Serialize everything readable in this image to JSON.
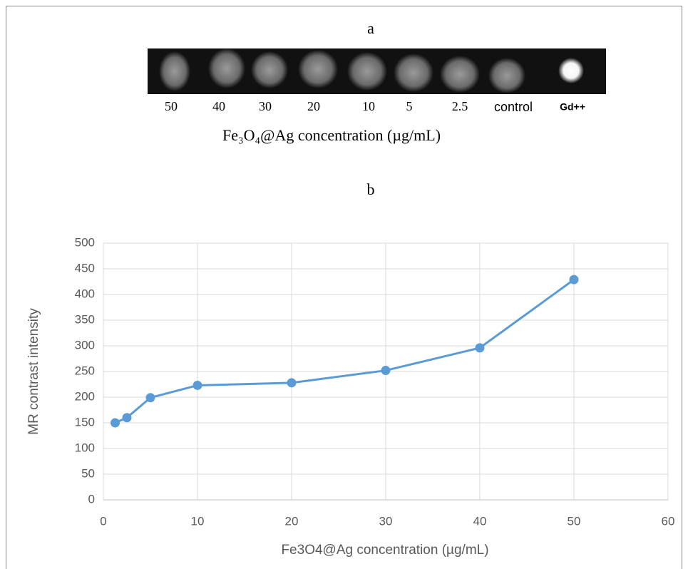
{
  "panel_a": {
    "label": "a",
    "lanes": [
      "50",
      "40",
      "30",
      "20",
      "10",
      "5",
      "2.5",
      "control",
      "Gd++"
    ],
    "caption": "Fe₃O₄@Ag concentration (µg/mL)"
  },
  "chart_data": {
    "type": "line",
    "panel_label": "b",
    "x_label": "Fe3O4@Ag concentration (µg/mL)",
    "y_label": "MR contrast intensity",
    "x": [
      1.25,
      2.5,
      5,
      10,
      20,
      30,
      40,
      50
    ],
    "series": [
      {
        "name": "MR contrast intensity",
        "color": "#5b9bd5",
        "values": [
          150,
          160,
          199,
          223,
          228,
          252,
          296,
          429
        ]
      }
    ],
    "xlim": [
      0,
      60
    ],
    "xticks": [
      0,
      10,
      20,
      30,
      40,
      50,
      60
    ],
    "ylim": [
      0,
      500
    ],
    "yticks": [
      0,
      50,
      100,
      150,
      200,
      250,
      300,
      350,
      400,
      450,
      500
    ],
    "grid": true
  }
}
